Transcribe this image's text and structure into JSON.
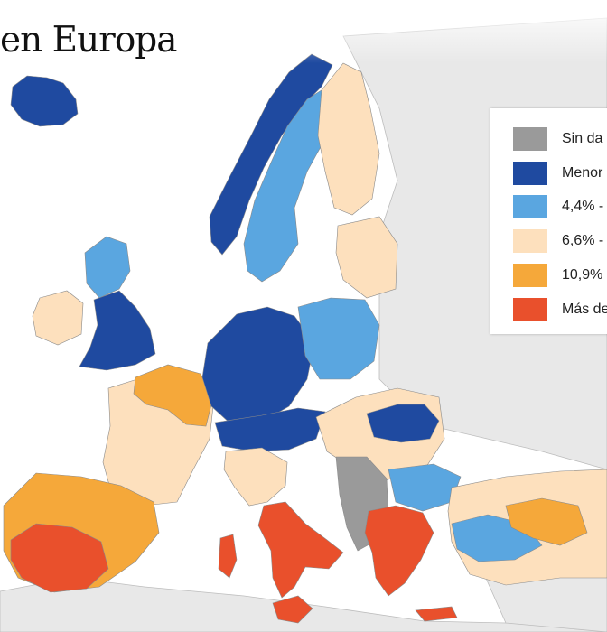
{
  "title": "en Europa",
  "colors": {
    "sea": "#ffffff",
    "nodata_land": "#e8e8e8",
    "border": "#9a9a9a",
    "sin_datos": "#9a9a9a",
    "menor": "#1f4aa0",
    "c2": "#5aa6e0",
    "c3": "#fde0bd",
    "c4": "#f5a83a",
    "c5": "#e9502c"
  },
  "legend": {
    "items": [
      {
        "label": "Sin da",
        "color": "#9a9a9a"
      },
      {
        "label": "Menor",
        "color": "#1f4aa0"
      },
      {
        "label": "4,4% -",
        "color": "#5aa6e0"
      },
      {
        "label": "6,6% -",
        "color": "#fde0bd"
      },
      {
        "label": "10,9%",
        "color": "#f5a83a"
      },
      {
        "label": "Más de",
        "color": "#e9502c"
      }
    ]
  },
  "map_regions": [
    {
      "name": "iceland",
      "class": "menor"
    },
    {
      "name": "scandinavia-north",
      "class": "menor"
    },
    {
      "name": "norway-sweden-mid",
      "class": "c2"
    },
    {
      "name": "finland",
      "class": "c3"
    },
    {
      "name": "baltics",
      "class": "c3"
    },
    {
      "name": "ireland",
      "class": "c3"
    },
    {
      "name": "scotland",
      "class": "c2"
    },
    {
      "name": "england",
      "class": "menor"
    },
    {
      "name": "france",
      "class": "c3"
    },
    {
      "name": "france-north",
      "class": "c4"
    },
    {
      "name": "germany",
      "class": "menor"
    },
    {
      "name": "poland",
      "class": "c2"
    },
    {
      "name": "czech-austria",
      "class": "menor"
    },
    {
      "name": "hungary-romania",
      "class": "c3"
    },
    {
      "name": "iberia",
      "class": "c4"
    },
    {
      "name": "spain-south",
      "class": "c5"
    },
    {
      "name": "italy-north",
      "class": "c3"
    },
    {
      "name": "italy-south",
      "class": "c5"
    },
    {
      "name": "balkans",
      "class": "sin_datos"
    },
    {
      "name": "greece",
      "class": "c5"
    },
    {
      "name": "turkey",
      "class": "c3"
    },
    {
      "name": "bulgaria",
      "class": "c2"
    }
  ]
}
